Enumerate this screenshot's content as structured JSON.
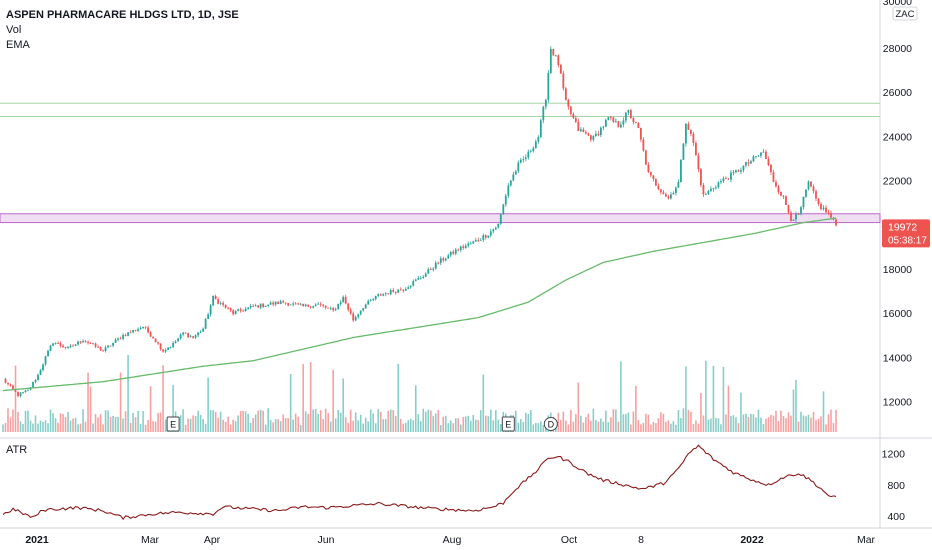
{
  "chart_data": {
    "type": "candlestick",
    "title": "ASPEN PHARMACARE HLDGS LTD, 1D, JSE",
    "legend": [
      "Vol",
      "EMA"
    ],
    "currency": "ZAC",
    "last_price": "19972",
    "countdown": "05:38:17",
    "price_axis": {
      "ticks": [
        "30000",
        "28000",
        "26000",
        "24000",
        "22000",
        "20000",
        "18000",
        "16000",
        "14000",
        "12000"
      ],
      "min": 11000,
      "max": 30000
    },
    "x_axis": {
      "labels": [
        "2021",
        "Mar",
        "Apr",
        "Jun",
        "Aug",
        "Oct",
        "8",
        "2022",
        "Mar"
      ]
    },
    "price_anchors": [
      [
        0,
        13000
      ],
      [
        6,
        12300
      ],
      [
        10,
        12500
      ],
      [
        14,
        13200
      ],
      [
        17,
        14000
      ],
      [
        20,
        14700
      ],
      [
        26,
        14400
      ],
      [
        32,
        14800
      ],
      [
        40,
        14300
      ],
      [
        48,
        15000
      ],
      [
        56,
        15400
      ],
      [
        60,
        14900
      ],
      [
        64,
        14300
      ],
      [
        68,
        14600
      ],
      [
        72,
        15100
      ],
      [
        76,
        14900
      ],
      [
        80,
        15300
      ],
      [
        84,
        16700
      ],
      [
        92,
        16000
      ],
      [
        100,
        16300
      ],
      [
        112,
        16500
      ],
      [
        120,
        16300
      ],
      [
        126,
        16400
      ],
      [
        132,
        16100
      ],
      [
        136,
        16700
      ],
      [
        140,
        15700
      ],
      [
        144,
        16300
      ],
      [
        150,
        16800
      ],
      [
        156,
        17000
      ],
      [
        160,
        17100
      ],
      [
        168,
        17700
      ],
      [
        174,
        18300
      ],
      [
        182,
        18900
      ],
      [
        188,
        19200
      ],
      [
        194,
        19600
      ],
      [
        198,
        20000
      ],
      [
        202,
        21800
      ],
      [
        206,
        22700
      ],
      [
        210,
        23200
      ],
      [
        214,
        24000
      ],
      [
        217,
        25800
      ],
      [
        219,
        28000
      ],
      [
        222,
        27300
      ],
      [
        225,
        25500
      ],
      [
        230,
        24300
      ],
      [
        236,
        23900
      ],
      [
        242,
        24800
      ],
      [
        246,
        24500
      ],
      [
        250,
        25100
      ],
      [
        254,
        24300
      ],
      [
        258,
        22300
      ],
      [
        262,
        21700
      ],
      [
        266,
        21200
      ],
      [
        270,
        21900
      ],
      [
        273,
        24700
      ],
      [
        276,
        23700
      ],
      [
        280,
        21300
      ],
      [
        286,
        21900
      ],
      [
        292,
        22300
      ],
      [
        298,
        22800
      ],
      [
        304,
        23300
      ],
      [
        308,
        22000
      ],
      [
        312,
        21200
      ],
      [
        315,
        20300
      ],
      [
        318,
        20400
      ],
      [
        322,
        21900
      ],
      [
        326,
        20900
      ],
      [
        330,
        20500
      ],
      [
        333,
        19972
      ]
    ],
    "horizontal_levels": [
      {
        "price": 25500,
        "color": "#a5d6a7"
      },
      {
        "price": 24900,
        "color": "#a5d6a7"
      }
    ],
    "zone": {
      "top": 20500,
      "bottom": 20100,
      "color": "#ba68c8"
    },
    "ema_anchors": [
      [
        0,
        12500
      ],
      [
        40,
        12900
      ],
      [
        80,
        13600
      ],
      [
        100,
        13850
      ],
      [
        140,
        14900
      ],
      [
        190,
        15800
      ],
      [
        210,
        16500
      ],
      [
        225,
        17500
      ],
      [
        240,
        18300
      ],
      [
        260,
        18800
      ],
      [
        280,
        19200
      ],
      [
        300,
        19600
      ],
      [
        320,
        20100
      ],
      [
        333,
        20300
      ]
    ],
    "event_markers": [
      {
        "label": "E",
        "index": 68
      },
      {
        "label": "E",
        "index": 202
      },
      {
        "label": "D",
        "index": 219
      }
    ],
    "atr_pane": {
      "label": "ATR",
      "ticks": [
        "1200",
        "800",
        "400"
      ],
      "min": 300,
      "max": 1350,
      "anchors": [
        [
          0,
          420
        ],
        [
          4,
          490
        ],
        [
          12,
          380
        ],
        [
          16,
          480
        ],
        [
          30,
          510
        ],
        [
          40,
          470
        ],
        [
          48,
          380
        ],
        [
          60,
          430
        ],
        [
          70,
          450
        ],
        [
          84,
          430
        ],
        [
          88,
          520
        ],
        [
          96,
          500
        ],
        [
          110,
          470
        ],
        [
          120,
          520
        ],
        [
          130,
          510
        ],
        [
          150,
          560
        ],
        [
          170,
          500
        ],
        [
          188,
          470
        ],
        [
          196,
          520
        ],
        [
          200,
          570
        ],
        [
          204,
          720
        ],
        [
          208,
          830
        ],
        [
          214,
          1000
        ],
        [
          218,
          1150
        ],
        [
          222,
          1160
        ],
        [
          226,
          1100
        ],
        [
          234,
          940
        ],
        [
          240,
          860
        ],
        [
          246,
          820
        ],
        [
          252,
          770
        ],
        [
          256,
          750
        ],
        [
          264,
          820
        ],
        [
          270,
          1000
        ],
        [
          274,
          1200
        ],
        [
          278,
          1300
        ],
        [
          284,
          1130
        ],
        [
          292,
          960
        ],
        [
          300,
          860
        ],
        [
          306,
          800
        ],
        [
          312,
          900
        ],
        [
          318,
          950
        ],
        [
          322,
          880
        ],
        [
          326,
          780
        ],
        [
          331,
          640
        ],
        [
          333,
          640
        ]
      ]
    },
    "colors": {
      "up": "#26a69a",
      "down": "#ef5350",
      "ema": "#66bb6a",
      "atr": "#8b1a1a",
      "price_label_bg": "#ef5350"
    }
  }
}
